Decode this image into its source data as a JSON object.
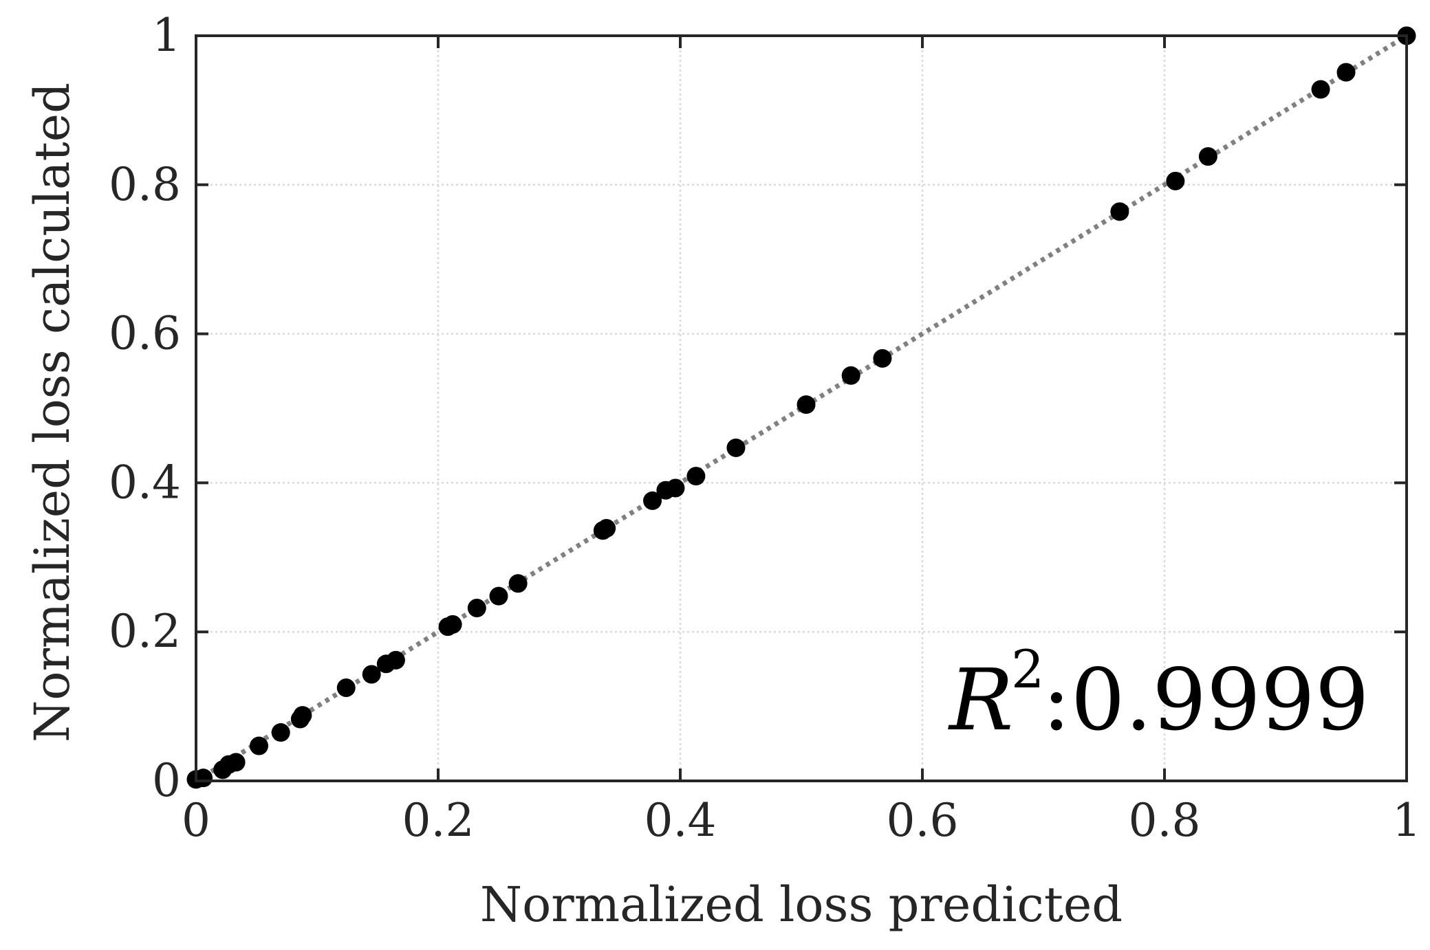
{
  "chart_data": {
    "type": "scatter",
    "title": "",
    "xlabel": "Normalized loss predicted",
    "ylabel": "Normalized loss calculated",
    "xlim": [
      0,
      1
    ],
    "ylim": [
      0,
      1
    ],
    "grid": true,
    "xticks": [
      0,
      0.2,
      0.4,
      0.6,
      0.8,
      1
    ],
    "yticks": [
      0,
      0.2,
      0.4,
      0.6,
      0.8,
      1
    ],
    "xtick_labels": [
      "0",
      "0.2",
      "0.4",
      "0.6",
      "0.8",
      "1"
    ],
    "ytick_labels": [
      "0",
      "0.2",
      "0.4",
      "0.6",
      "0.8",
      "1"
    ],
    "annotation": {
      "symbol": "R",
      "superscript": "2",
      "value": ":0.9999",
      "position": "bottom-right"
    },
    "reference_line": {
      "name": "y = x",
      "style": "dotted",
      "color": "#808080"
    },
    "marker_color": "#000000",
    "series": [
      {
        "name": "samples",
        "points": [
          [
            0.0,
            0.002
          ],
          [
            0.006,
            0.004
          ],
          [
            0.022,
            0.015
          ],
          [
            0.027,
            0.022
          ],
          [
            0.033,
            0.025
          ],
          [
            0.052,
            0.047
          ],
          [
            0.07,
            0.065
          ],
          [
            0.086,
            0.083
          ],
          [
            0.088,
            0.088
          ],
          [
            0.124,
            0.125
          ],
          [
            0.145,
            0.143
          ],
          [
            0.157,
            0.157
          ],
          [
            0.165,
            0.162
          ],
          [
            0.208,
            0.207
          ],
          [
            0.212,
            0.21
          ],
          [
            0.232,
            0.232
          ],
          [
            0.25,
            0.248
          ],
          [
            0.266,
            0.265
          ],
          [
            0.336,
            0.336
          ],
          [
            0.339,
            0.339
          ],
          [
            0.377,
            0.376
          ],
          [
            0.388,
            0.39
          ],
          [
            0.396,
            0.393
          ],
          [
            0.413,
            0.409
          ],
          [
            0.446,
            0.447
          ],
          [
            0.504,
            0.505
          ],
          [
            0.541,
            0.544
          ],
          [
            0.567,
            0.567
          ],
          [
            0.763,
            0.764
          ],
          [
            0.809,
            0.805
          ],
          [
            0.836,
            0.838
          ],
          [
            0.929,
            0.928
          ],
          [
            0.95,
            0.951
          ],
          [
            1.0,
            1.0
          ]
        ]
      }
    ]
  }
}
